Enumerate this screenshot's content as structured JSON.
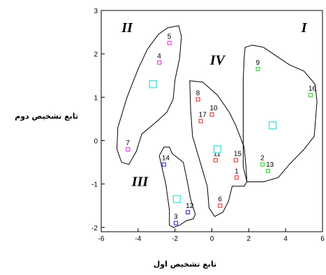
{
  "chart_data": {
    "type": "scatter",
    "xlabel": "تابع تشخيص اول",
    "ylabel": "تابع تشخيص دوم",
    "xlim": [
      -6,
      6
    ],
    "ylim": [
      -2.1,
      3
    ],
    "xticks": [
      "-6",
      "-4",
      "-2",
      "0",
      "2",
      "4",
      "6"
    ],
    "yticks": [
      "-2",
      "-1",
      "0",
      "1",
      "2",
      "3"
    ],
    "grid": false,
    "series": [
      {
        "group": "I",
        "color": "#22cc22",
        "points": [
          {
            "label": "9",
            "x": 2.5,
            "y": 1.65
          },
          {
            "label": "16",
            "x": 5.35,
            "y": 1.05
          },
          {
            "label": "2",
            "x": 2.75,
            "y": -0.55
          },
          {
            "label": "13",
            "x": 3.05,
            "y": -0.7
          }
        ]
      },
      {
        "group": "II",
        "color": "#dd22dd",
        "points": [
          {
            "label": "5",
            "x": -2.3,
            "y": 2.25
          },
          {
            "label": "4",
            "x": -2.85,
            "y": 1.8
          },
          {
            "label": "7",
            "x": -4.55,
            "y": -0.2
          }
        ]
      },
      {
        "group": "III",
        "color": "#2222cc",
        "points": [
          {
            "label": "14",
            "x": -2.6,
            "y": -0.55
          },
          {
            "label": "12",
            "x": -1.3,
            "y": -1.65
          },
          {
            "label": "3",
            "x": -1.95,
            "y": -1.9
          }
        ]
      },
      {
        "group": "IV",
        "color": "#dd2222",
        "points": [
          {
            "label": "8",
            "x": -0.75,
            "y": 0.95
          },
          {
            "label": "17",
            "x": -0.6,
            "y": 0.45
          },
          {
            "label": "10",
            "x": 0.0,
            "y": 0.6
          },
          {
            "label": "11",
            "x": 0.2,
            "y": -0.45
          },
          {
            "label": "15",
            "x": 1.3,
            "y": -0.45
          },
          {
            "label": "1",
            "x": 1.35,
            "y": -0.85
          },
          {
            "label": "6",
            "x": 0.45,
            "y": -1.5
          }
        ]
      }
    ],
    "centroids": [
      {
        "group": "I",
        "x": 3.3,
        "y": 0.35
      },
      {
        "group": "II",
        "x": -3.2,
        "y": 1.3
      },
      {
        "group": "III",
        "x": -1.9,
        "y": -1.35
      },
      {
        "group": "IV",
        "x": 0.3,
        "y": -0.2
      }
    ],
    "centroid_color": "#33dddd",
    "group_labels": [
      {
        "text": "I",
        "x": 5.0,
        "y": 2.5
      },
      {
        "text": "II",
        "x": -4.6,
        "y": 2.5
      },
      {
        "text": "III",
        "x": -3.9,
        "y": -1.05
      },
      {
        "text": "IV",
        "x": 0.3,
        "y": 1.75
      }
    ]
  }
}
